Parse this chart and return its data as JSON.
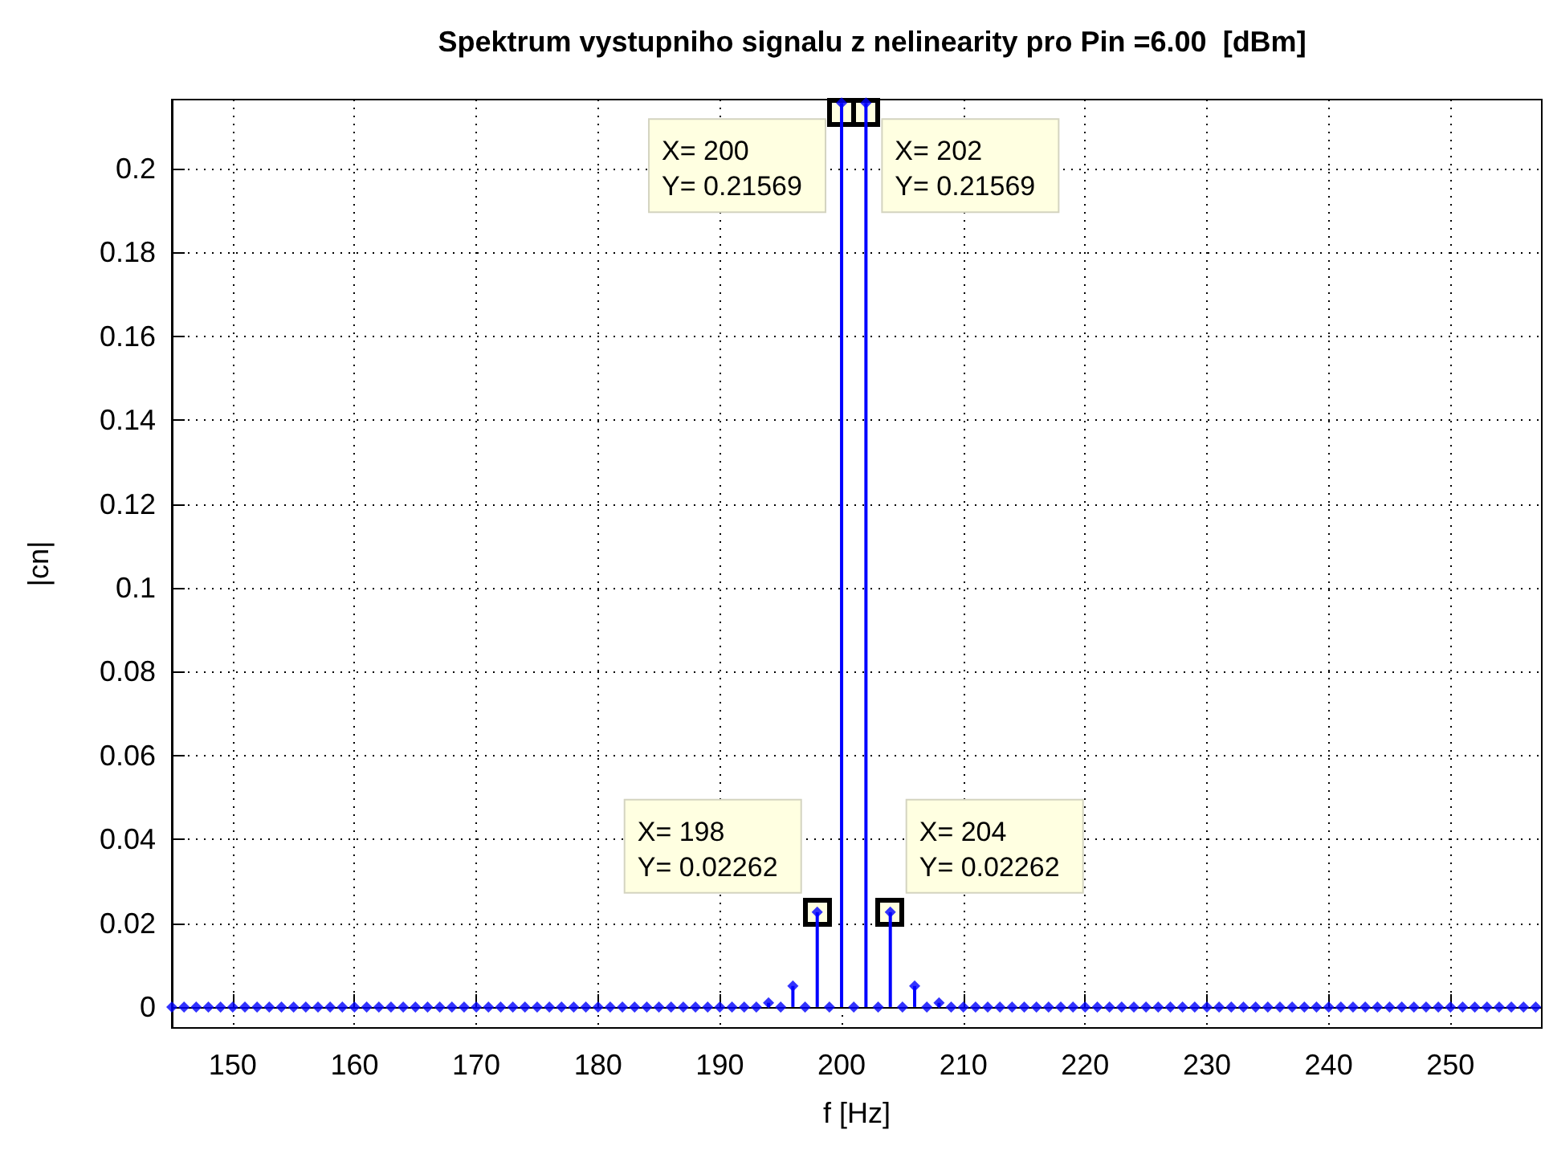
{
  "chart_data": {
    "type": "lollipop",
    "title": "Spektrum vystupniho signalu z nelinearity pro Pin =6.00  [dBm]",
    "xlabel": "f [Hz]",
    "ylabel": "|cn|",
    "x": [
      145,
      146,
      147,
      148,
      149,
      150,
      151,
      152,
      153,
      154,
      155,
      156,
      157,
      158,
      159,
      160,
      161,
      162,
      163,
      164,
      165,
      166,
      167,
      168,
      169,
      170,
      171,
      172,
      173,
      174,
      175,
      176,
      177,
      178,
      179,
      180,
      181,
      182,
      183,
      184,
      185,
      186,
      187,
      188,
      189,
      190,
      191,
      192,
      193,
      194,
      195,
      196,
      197,
      198,
      199,
      200,
      201,
      202,
      203,
      204,
      205,
      206,
      207,
      208,
      209,
      210,
      211,
      212,
      213,
      214,
      215,
      216,
      217,
      218,
      219,
      220,
      221,
      222,
      223,
      224,
      225,
      226,
      227,
      228,
      229,
      230,
      231,
      232,
      233,
      234,
      235,
      236,
      237,
      238,
      239,
      240,
      241,
      242,
      243,
      244,
      245,
      246,
      247,
      248,
      249,
      250,
      251,
      252,
      253,
      254,
      255,
      256,
      257
    ],
    "series": [
      {
        "color": "#0000ff",
        "values": [
          0,
          0,
          0,
          0,
          0,
          0,
          0,
          0,
          0,
          0,
          0,
          0,
          0,
          0,
          0,
          0,
          0,
          0,
          0,
          0,
          0,
          0,
          0,
          0,
          0,
          0,
          0,
          0,
          0,
          0,
          0,
          0,
          0,
          0,
          0,
          0,
          0,
          0,
          0,
          0,
          0,
          0,
          0,
          0,
          0,
          0,
          0,
          0,
          0,
          0.001,
          0,
          0.005,
          0,
          0.02262,
          0,
          0.21569,
          0,
          0.21569,
          0,
          0.02262,
          0,
          0.005,
          0,
          0.001,
          0,
          0,
          0,
          0,
          0,
          0,
          0,
          0,
          0,
          0,
          0,
          0,
          0,
          0,
          0,
          0,
          0,
          0,
          0,
          0,
          0,
          0,
          0,
          0,
          0,
          0,
          0,
          0,
          0,
          0,
          0,
          0,
          0,
          0,
          0,
          0,
          0,
          0,
          0,
          0,
          0,
          0,
          0,
          0,
          0,
          0,
          0,
          0,
          0
        ]
      }
    ],
    "marker": "diamond",
    "grid": true,
    "xlim": [
      145,
      257.5
    ],
    "xticks": [
      150,
      160,
      170,
      180,
      190,
      200,
      210,
      220,
      230,
      240,
      250
    ],
    "ylim": [
      -0.005,
      0.2165
    ],
    "yticks": [
      0,
      0.02,
      0.04,
      0.06,
      0.08,
      0.1,
      0.12,
      0.14,
      0.16,
      0.18,
      0.2
    ],
    "annotations": [
      {
        "text": "X= 200\nY= 0.21569",
        "x": 200,
        "y": 0.21569
      },
      {
        "text": "X= 202\nY= 0.21569",
        "x": 202,
        "y": 0.21569
      },
      {
        "text": "X= 198\nY= 0.02262",
        "x": 198,
        "y": 0.02262
      },
      {
        "text": "X= 204\nY= 0.02262",
        "x": 204,
        "y": 0.02262
      }
    ]
  }
}
